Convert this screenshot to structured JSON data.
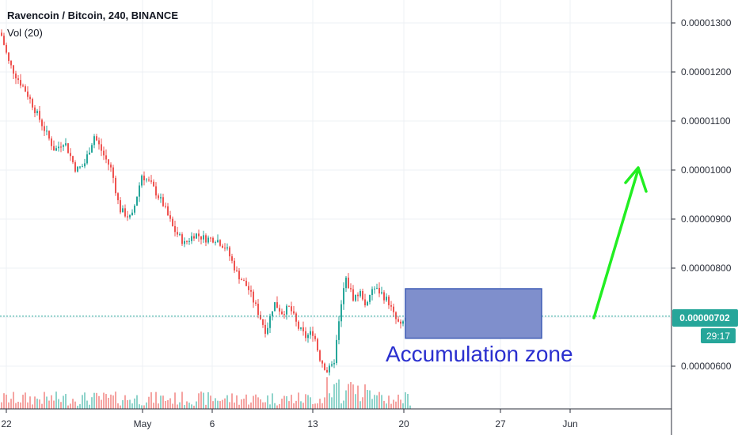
{
  "header": {
    "title": "Ravencoin / Bitcoin, 240, BINANCE",
    "volume_label": "Vol (20)"
  },
  "price_axis": {
    "ticks": [
      "0.00001300",
      "0.00001200",
      "0.00001100",
      "0.00001000",
      "0.00000900",
      "0.00000800",
      "0.00000600"
    ],
    "tick_values": [
      1.3e-05,
      1.2e-05,
      1.1e-05,
      1e-05,
      9e-06,
      8e-06,
      6e-06
    ],
    "last_price_label": "0.00000702",
    "last_price": 7.02e-06,
    "countdown": "29:17"
  },
  "time_axis": {
    "ticks": [
      "22",
      "May",
      "6",
      "13",
      "20",
      "27",
      "Jun"
    ]
  },
  "annotations": {
    "zone_label": "Accumulation zone",
    "zone_top": 7.58e-06,
    "zone_bottom": 6.57e-06
  },
  "colors": {
    "up": "#26a69a",
    "down": "#ef5350",
    "vol_up": "#8fd4cb",
    "vol_down": "#f5a3a1",
    "last_price": "#26a69a",
    "zone_fill": "#7f8fcc",
    "zone_border": "#3d5bb5",
    "zone_text": "#2a2fcf",
    "arrow": "#22ee22",
    "grid": "#eef1f4",
    "axis_text": "#2a2e39"
  },
  "chart_data": {
    "type": "candlestick",
    "title": "Ravencoin / Bitcoin, 240, BINANCE",
    "x_ticks": [
      "22",
      "May",
      "6",
      "13",
      "20",
      "27",
      "Jun"
    ],
    "ylim": [
      5.3e-06,
      1.37e-05
    ],
    "close_path": [
      [
        0,
        1.28e-05
      ],
      [
        10,
        1.22e-05
      ],
      [
        20,
        1.19e-05
      ],
      [
        32,
        1.16e-05
      ],
      [
        44,
        1.12e-05
      ],
      [
        56,
        1.08e-05
      ],
      [
        68,
        1.04e-05
      ],
      [
        80,
        1.06e-05
      ],
      [
        95,
        1e-05
      ],
      [
        105,
        1.01e-05
      ],
      [
        118,
        1.07e-05
      ],
      [
        130,
        1.03e-05
      ],
      [
        140,
        1e-05
      ],
      [
        150,
        9.2e-06
      ],
      [
        165,
        9e-06
      ],
      [
        178,
        9.9e-06
      ],
      [
        190,
        9.7e-06
      ],
      [
        205,
        9.3e-06
      ],
      [
        218,
        8.8e-06
      ],
      [
        232,
        8.5e-06
      ],
      [
        245,
        8.7e-06
      ],
      [
        258,
        8.6e-06
      ],
      [
        272,
        8.6e-06
      ],
      [
        285,
        8.4e-06
      ],
      [
        298,
        7.9e-06
      ],
      [
        312,
        7.6e-06
      ],
      [
        325,
        7.1e-06
      ],
      [
        335,
        6.7e-06
      ],
      [
        345,
        7.3e-06
      ],
      [
        355,
        7.1e-06
      ],
      [
        365,
        7.2e-06
      ],
      [
        375,
        6.8e-06
      ],
      [
        385,
        6.6e-06
      ],
      [
        395,
        6.7e-06
      ],
      [
        402,
        6.2e-06
      ],
      [
        412,
        5.9e-06
      ],
      [
        420,
        6e-06
      ],
      [
        428,
        7e-06
      ],
      [
        435,
        7.8e-06
      ],
      [
        445,
        7.4e-06
      ],
      [
        455,
        7.5e-06
      ],
      [
        462,
        7.2e-06
      ],
      [
        470,
        7.6e-06
      ],
      [
        480,
        7.5e-06
      ],
      [
        490,
        7.3e-06
      ],
      [
        497,
        7e-06
      ],
      [
        505,
        6.8e-06
      ],
      [
        512,
        7.02e-06
      ]
    ]
  }
}
